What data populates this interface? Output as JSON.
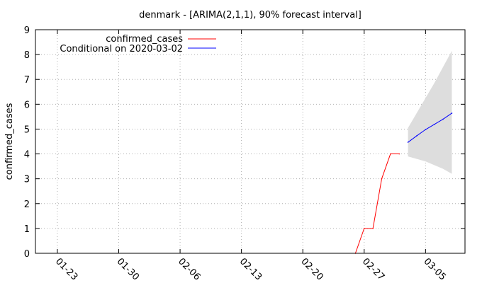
{
  "chart_data": {
    "type": "line",
    "title": "denmark -  [ARIMA(2,1,1), 90% forecast interval]",
    "xlabel": "",
    "ylabel": "confirmed_cases",
    "x_tick_labels": [
      "01-23",
      "01-30",
      "02-06",
      "02-13",
      "02-20",
      "02-27",
      "03-05"
    ],
    "x_tick_days": [
      1,
      8,
      15,
      22,
      29,
      36,
      43
    ],
    "xlim_days": [
      -1.5,
      47.5
    ],
    "ylim": [
      0,
      9
    ],
    "y_ticks": [
      0,
      1,
      2,
      3,
      4,
      5,
      6,
      7,
      8,
      9
    ],
    "grid": true,
    "legend_position": "top-left",
    "colors": {
      "observed": "#ff0000",
      "forecast": "#0000ff",
      "interval": "#dddddd"
    },
    "series": [
      {
        "name": "confirmed_cases",
        "kind": "observed",
        "x_days": [
          35,
          36,
          37,
          38,
          39,
          40
        ],
        "values": [
          0,
          1,
          1,
          3,
          4,
          4
        ]
      },
      {
        "name": "Conditional on 2020-03-02",
        "kind": "forecast",
        "x_days": [
          41,
          42,
          43,
          44,
          45,
          46
        ],
        "values": [
          4.47,
          4.73,
          4.98,
          5.19,
          5.4,
          5.64
        ],
        "lower": [
          3.9,
          3.8,
          3.7,
          3.55,
          3.4,
          3.2
        ],
        "upper": [
          5.05,
          5.65,
          6.25,
          6.85,
          7.5,
          8.15
        ]
      }
    ]
  }
}
